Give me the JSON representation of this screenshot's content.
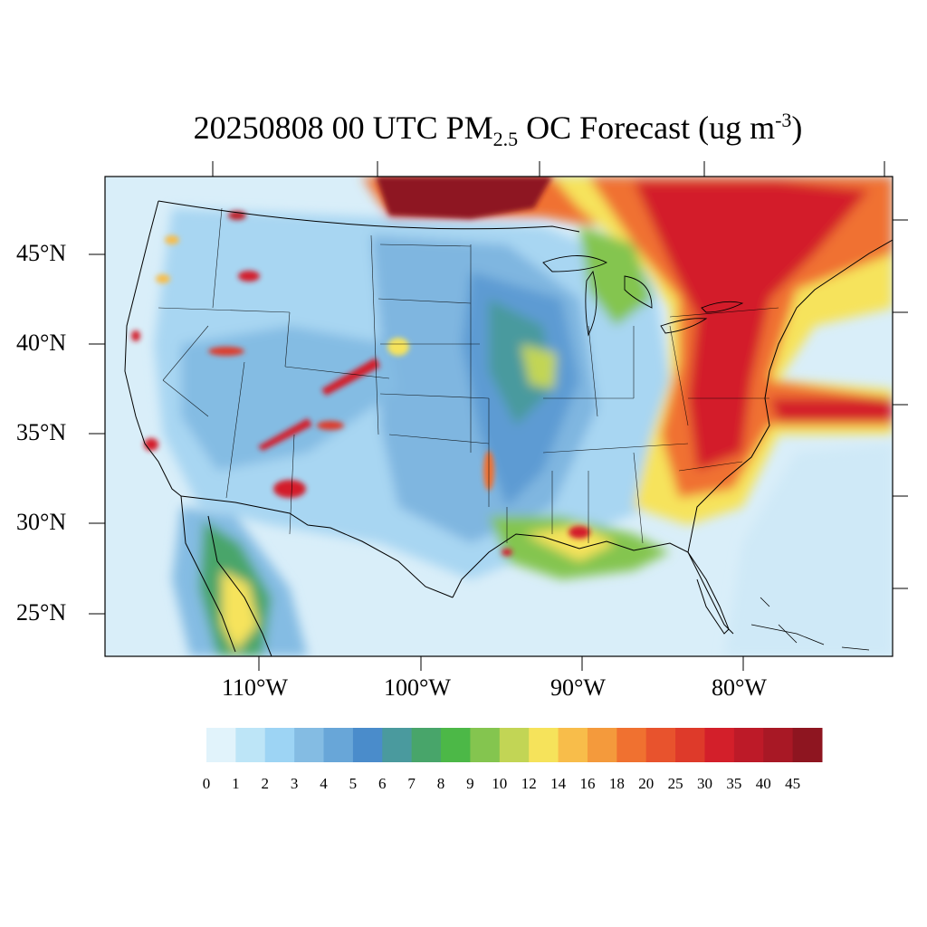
{
  "title": {
    "prefix": "20250808 00 UTC PM",
    "sub": "2.5",
    "middle": " OC Forecast (ug m",
    "sup": "-3",
    "suffix": ")"
  },
  "lat_labels": [
    "45°N",
    "40°N",
    "35°N",
    "30°N",
    "25°N"
  ],
  "lon_labels": [
    "110°W",
    "100°W",
    "90°W",
    "80°W"
  ],
  "colorbar": {
    "labels": [
      "0",
      "1",
      "2",
      "3",
      "4",
      "5",
      "6",
      "7",
      "8",
      "9",
      "10",
      "12",
      "14",
      "16",
      "18",
      "20",
      "25",
      "30",
      "35",
      "40",
      "45"
    ],
    "colors": [
      "#e1f3fb",
      "#bde5f7",
      "#9dd4f4",
      "#84bce3",
      "#68a6d8",
      "#4a8ccb",
      "#4a9a9e",
      "#48a56a",
      "#4cb847",
      "#84c54f",
      "#c2d555",
      "#f6e35b",
      "#f8bd4a",
      "#f49a3c",
      "#f07130",
      "#e8532d",
      "#de3a2a",
      "#d31f2a",
      "#bd1a28",
      "#a81825",
      "#8e1520"
    ]
  }
}
